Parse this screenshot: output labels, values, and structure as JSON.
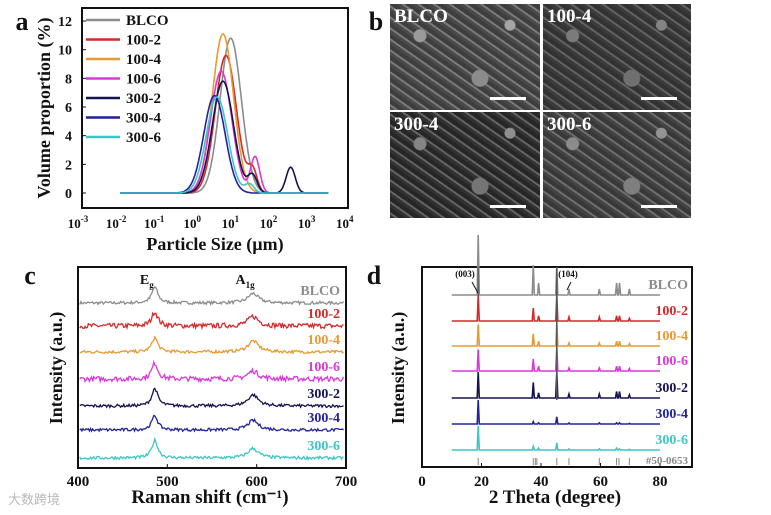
{
  "panel_labels": [
    "a",
    "b",
    "c",
    "d"
  ],
  "watermark": "大数跨境",
  "colors": {
    "BLCO": "#8c8c8c",
    "100-2": "#d42a2a",
    "100-4": "#e89a30",
    "100-6": "#d83ad8",
    "300-2": "#141450",
    "300-4": "#22229a",
    "300-6": "#3cc6c6"
  },
  "sem_images": [
    {
      "label": "BLCO"
    },
    {
      "label": "100-4"
    },
    {
      "label": "300-4"
    },
    {
      "label": "300-6"
    }
  ],
  "chart_data": [
    {
      "type": "line",
      "panel": "a",
      "xlabel": "Particle Size (µm)",
      "ylabel": "Volume proportion (%)",
      "xscale": "log",
      "xlim_log10": [
        -3,
        4
      ],
      "ylim": [
        -1,
        13
      ],
      "xtick_exponents": [
        -3,
        -2,
        -1,
        0,
        1,
        2,
        3,
        4
      ],
      "yticks": [
        0,
        2,
        4,
        6,
        8,
        10,
        12
      ],
      "legend_position": "top-left",
      "baseline_range": [
        0.01,
        3000
      ],
      "series": [
        {
          "name": "BLCO",
          "peaks": [
            {
              "x": 8,
              "y": 10.8
            }
          ]
        },
        {
          "name": "100-2",
          "peaks": [
            {
              "x": 6,
              "y": 9.6
            },
            {
              "x": 30,
              "y": 1.5
            }
          ]
        },
        {
          "name": "100-4",
          "peaks": [
            {
              "x": 5,
              "y": 11.1
            }
          ]
        },
        {
          "name": "100-6",
          "peaks": [
            {
              "x": 4.5,
              "y": 8.5
            },
            {
              "x": 35,
              "y": 2.5
            }
          ]
        },
        {
          "name": "300-2",
          "peaks": [
            {
              "x": 5,
              "y": 7.8
            },
            {
              "x": 30,
              "y": 1.2
            },
            {
              "x": 300,
              "y": 1.8
            }
          ]
        },
        {
          "name": "300-4",
          "peaks": [
            {
              "x": 3,
              "y": 6.8
            }
          ]
        },
        {
          "name": "300-6",
          "peaks": [
            {
              "x": 3.5,
              "y": 6.7
            },
            {
              "x": 25,
              "y": 0.6
            }
          ]
        }
      ]
    },
    {
      "type": "line",
      "panel": "c",
      "xlabel": "Raman shift (cm-1)",
      "ylabel": "Intensity (a.u.)",
      "xlim": [
        400,
        700
      ],
      "xticks": [
        400,
        500,
        600,
        700
      ],
      "annotations": [
        {
          "text": "E",
          "sub": "g",
          "x": 486
        },
        {
          "text": "A",
          "sub": "1g",
          "x": 596
        }
      ],
      "series": [
        {
          "name": "BLCO",
          "peaks": [
            {
              "x": 486,
              "h": 1.0
            },
            {
              "x": 596,
              "h": 0.6
            }
          ]
        },
        {
          "name": "100-2",
          "peaks": [
            {
              "x": 486,
              "h": 0.9
            },
            {
              "x": 596,
              "h": 0.6
            }
          ]
        },
        {
          "name": "100-4",
          "peaks": [
            {
              "x": 486,
              "h": 0.9
            },
            {
              "x": 596,
              "h": 0.7
            }
          ]
        },
        {
          "name": "100-6",
          "peaks": [
            {
              "x": 486,
              "h": 1.0
            },
            {
              "x": 596,
              "h": 0.5
            }
          ]
        },
        {
          "name": "300-2",
          "peaks": [
            {
              "x": 486,
              "h": 1.1
            },
            {
              "x": 596,
              "h": 0.7
            }
          ]
        },
        {
          "name": "300-4",
          "peaks": [
            {
              "x": 486,
              "h": 0.9
            },
            {
              "x": 596,
              "h": 0.6
            }
          ]
        },
        {
          "name": "300-6",
          "peaks": [
            {
              "x": 486,
              "h": 1.1
            },
            {
              "x": 596,
              "h": 0.6
            }
          ]
        }
      ]
    },
    {
      "type": "line",
      "panel": "d",
      "xlabel": "2 Theta (degree)",
      "ylabel": "Intensity (a.u.)",
      "xlim": [
        0,
        90
      ],
      "xticks": [
        0,
        20,
        40,
        60,
        80
      ],
      "annotations": [
        "(003)",
        "(104)"
      ],
      "reference": "#50-0653",
      "reference_peaks": [
        18.9,
        37.4,
        38.1,
        38.6,
        45.3,
        49.4,
        59.6,
        65.4,
        66.2,
        69.7
      ],
      "peak_positions": [
        18.9,
        37.4,
        39.2,
        45.3,
        49.4,
        59.6,
        65.4,
        66.4,
        69.7
      ],
      "series": [
        {
          "name": "BLCO",
          "intensities": [
            1.0,
            0.5,
            0.2,
            1.0,
            0.1,
            0.1,
            0.2,
            0.2,
            0.1
          ]
        },
        {
          "name": "100-2",
          "intensities": [
            1.0,
            0.5,
            0.2,
            1.0,
            0.15,
            0.15,
            0.2,
            0.2,
            0.1
          ]
        },
        {
          "name": "100-4",
          "intensities": [
            0.9,
            0.5,
            0.2,
            1.0,
            0.12,
            0.12,
            0.2,
            0.2,
            0.1
          ]
        },
        {
          "name": "100-6",
          "intensities": [
            0.9,
            0.5,
            0.2,
            1.0,
            0.12,
            0.12,
            0.2,
            0.2,
            0.1
          ]
        },
        {
          "name": "300-2",
          "intensities": [
            1.0,
            0.6,
            0.2,
            1.0,
            0.15,
            0.15,
            0.25,
            0.25,
            0.12
          ]
        },
        {
          "name": "300-4",
          "intensities": [
            1.0,
            0.1,
            0.05,
            0.3,
            0.04,
            0.05,
            0.05,
            0.05,
            0.03
          ]
        },
        {
          "name": "300-6",
          "intensities": [
            1.0,
            0.15,
            0.08,
            0.3,
            0.04,
            0.05,
            0.08,
            0.05,
            0.03
          ]
        }
      ]
    }
  ]
}
